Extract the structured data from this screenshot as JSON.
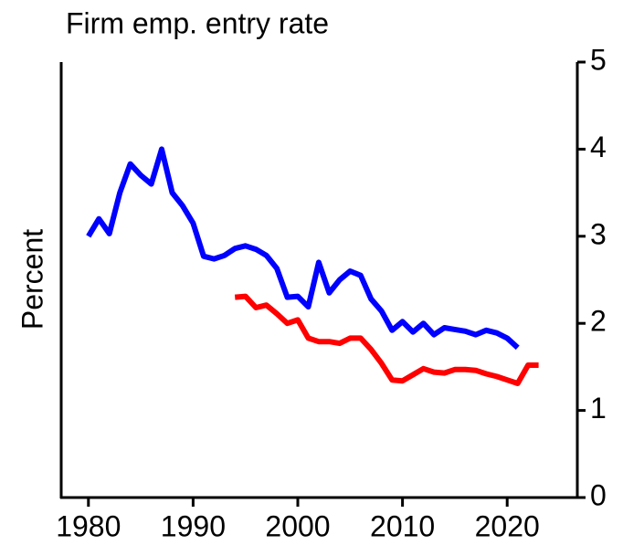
{
  "chart_data": {
    "type": "line",
    "title": "Firm emp. entry rate",
    "ylabel": "Percent",
    "x": [
      1980,
      1981,
      1982,
      1983,
      1984,
      1985,
      1986,
      1987,
      1988,
      1989,
      1990,
      1991,
      1992,
      1993,
      1994,
      1995,
      1996,
      1997,
      1998,
      1999,
      2000,
      2001,
      2002,
      2003,
      2004,
      2005,
      2006,
      2007,
      2008,
      2009,
      2010,
      2011,
      2012,
      2013,
      2014,
      2015,
      2016,
      2017,
      2018,
      2019,
      2020,
      2021,
      2022,
      2023
    ],
    "series": [
      {
        "color": "#0000ff",
        "values": [
          3.0,
          3.2,
          3.03,
          3.5,
          3.83,
          3.7,
          3.6,
          4.0,
          3.5,
          3.35,
          3.15,
          2.77,
          2.74,
          2.78,
          2.86,
          2.89,
          2.85,
          2.78,
          2.63,
          2.3,
          2.31,
          2.19,
          2.7,
          2.35,
          2.5,
          2.6,
          2.55,
          2.28,
          2.14,
          1.92,
          2.02,
          1.9,
          2.0,
          1.87,
          1.95,
          1.93,
          1.91,
          1.87,
          1.92,
          1.89,
          1.83,
          1.72,
          null,
          null
        ]
      },
      {
        "color": "#ff0000",
        "values": [
          null,
          null,
          null,
          null,
          null,
          null,
          null,
          null,
          null,
          null,
          null,
          null,
          null,
          null,
          2.3,
          2.31,
          2.18,
          2.21,
          2.11,
          2.0,
          2.04,
          1.83,
          1.79,
          1.79,
          1.77,
          1.83,
          1.83,
          1.7,
          1.54,
          1.35,
          1.34,
          1.41,
          1.48,
          1.44,
          1.43,
          1.47,
          1.47,
          1.46,
          1.42,
          1.39,
          1.35,
          1.31,
          1.52,
          1.52
        ]
      }
    ],
    "xlim": [
      1977.4,
      2026.7
    ],
    "xticks": [
      1980,
      1990,
      2000,
      2010,
      2020
    ],
    "ylim": [
      0,
      5
    ],
    "yticks": [
      0,
      1,
      2,
      3,
      4,
      5
    ],
    "y_axis_side": "right"
  }
}
